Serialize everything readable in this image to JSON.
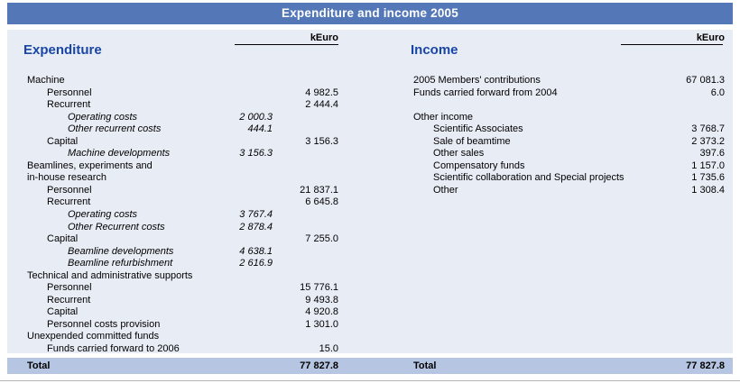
{
  "title": "Expenditure and income 2005",
  "unit_label": "kEuro",
  "colors": {
    "title_bar": "#5478b7",
    "content_background": "#e8ecf5",
    "total_band": "#b6c6e2",
    "heading_text": "#1946a5",
    "title_text": "#ffffff"
  },
  "expenditure": {
    "heading": "Expenditure",
    "rows": [
      {
        "label": "Machine",
        "indent": 0,
        "italic": false,
        "sub": "",
        "main": ""
      },
      {
        "label": "Personnel",
        "indent": 1,
        "italic": false,
        "sub": "",
        "main": "4 982.5"
      },
      {
        "label": "Recurrent",
        "indent": 1,
        "italic": false,
        "sub": "",
        "main": "2 444.4"
      },
      {
        "label": "Operating costs",
        "indent": 2,
        "italic": true,
        "sub": "2 000.3",
        "main": ""
      },
      {
        "label": "Other recurrent costs",
        "indent": 2,
        "italic": true,
        "sub": "444.1",
        "main": ""
      },
      {
        "label": "Capital",
        "indent": 1,
        "italic": false,
        "sub": "",
        "main": "3 156.3"
      },
      {
        "label": "Machine developments",
        "indent": 2,
        "italic": true,
        "sub": "3 156.3",
        "main": ""
      },
      {
        "label": "Beamlines, experiments and",
        "indent": 0,
        "italic": false,
        "sub": "",
        "main": ""
      },
      {
        "label": "in-house research",
        "indent": 0,
        "italic": false,
        "sub": "",
        "main": ""
      },
      {
        "label": "Personnel",
        "indent": 1,
        "italic": false,
        "sub": "",
        "main": "21 837.1"
      },
      {
        "label": "Recurrent",
        "indent": 1,
        "italic": false,
        "sub": "",
        "main": "6 645.8"
      },
      {
        "label": "Operating costs",
        "indent": 2,
        "italic": true,
        "sub": "3 767.4",
        "main": ""
      },
      {
        "label": "Other Recurrent costs",
        "indent": 2,
        "italic": true,
        "sub": "2 878.4",
        "main": ""
      },
      {
        "label": "Capital",
        "indent": 1,
        "italic": false,
        "sub": "",
        "main": "7 255.0"
      },
      {
        "label": "Beamline developments",
        "indent": 2,
        "italic": true,
        "sub": "4 638.1",
        "main": ""
      },
      {
        "label": "Beamline refurbishment",
        "indent": 2,
        "italic": true,
        "sub": "2 616.9",
        "main": ""
      },
      {
        "label": "Technical and administrative supports",
        "indent": 0,
        "italic": false,
        "sub": "",
        "main": ""
      },
      {
        "label": "Personnel",
        "indent": 1,
        "italic": false,
        "sub": "",
        "main": "15 776.1"
      },
      {
        "label": "Recurrent",
        "indent": 1,
        "italic": false,
        "sub": "",
        "main": "9 493.8"
      },
      {
        "label": "Capital",
        "indent": 1,
        "italic": false,
        "sub": "",
        "main": "4 920.8"
      },
      {
        "label": "Personnel costs provision",
        "indent": 1,
        "italic": false,
        "sub": "",
        "main": "1 301.0"
      },
      {
        "label": "Unexpended committed funds",
        "indent": 0,
        "italic": false,
        "sub": "",
        "main": ""
      },
      {
        "label": "Funds carried forward to 2006",
        "indent": 1,
        "italic": false,
        "sub": "",
        "main": "15.0"
      }
    ],
    "total_label": "Total",
    "total_value": "77 827.8"
  },
  "income": {
    "heading": "Income",
    "rows": [
      {
        "label": "2005 Members' contributions",
        "indent": 0,
        "italic": false,
        "main": "67 081.3"
      },
      {
        "label": "Funds carried forward from 2004",
        "indent": 0,
        "italic": false,
        "main": "6.0"
      },
      {
        "spacer": true
      },
      {
        "label": "Other income",
        "indent": 0,
        "italic": false,
        "main": ""
      },
      {
        "label": "Scientific Associates",
        "indent": 1,
        "italic": false,
        "main": "3 768.7"
      },
      {
        "label": "Sale of beamtime",
        "indent": 1,
        "italic": false,
        "main": "2 373.2"
      },
      {
        "label": "Other sales",
        "indent": 1,
        "italic": false,
        "main": "397.6"
      },
      {
        "label": "Compensatory funds",
        "indent": 1,
        "italic": false,
        "main": "1 157.0"
      },
      {
        "label": "Scientific collaboration and Special projects",
        "indent": 1,
        "italic": false,
        "main": "1 735.6"
      },
      {
        "label": "Other",
        "indent": 1,
        "italic": false,
        "main": "1 308.4"
      }
    ],
    "total_label": "Total",
    "total_value": "77 827.8"
  }
}
